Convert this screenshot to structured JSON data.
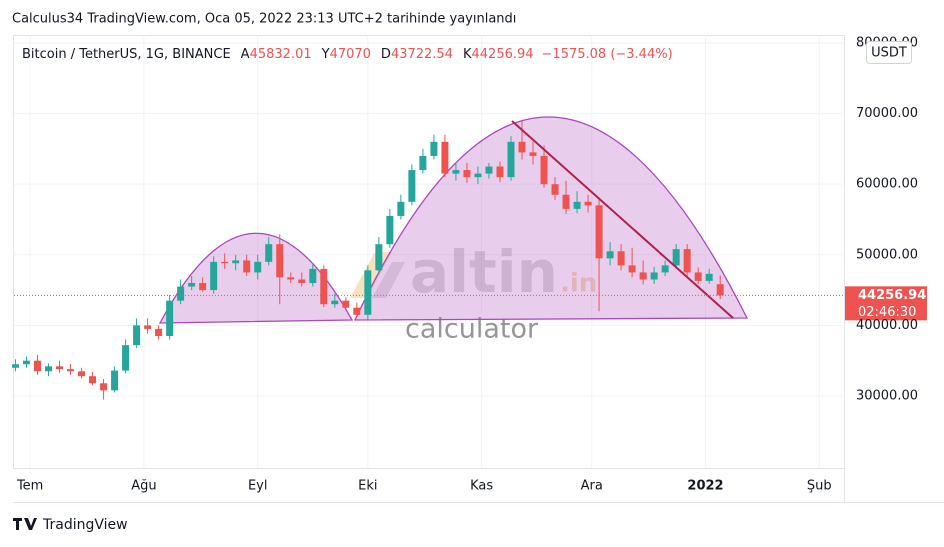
{
  "header": {
    "published": "Calculus34 TradingView.com, Oca 05, 2022 23:13 UTC+2 tarihinde yayınlandı",
    "footer_logo": "TradingView"
  },
  "watermark": {
    "brand": "altin",
    "suffix": ".in",
    "subtitle": "calculator"
  },
  "chart_data": {
    "type": "candlestick",
    "title": "Bitcoin / TetherUS, 1G, BINANCE",
    "ohlc_labels": [
      "A",
      "Y",
      "D",
      "K"
    ],
    "change": "−1575.08 (−3.44%)",
    "currency": "USDT",
    "countdown": "02:46:30",
    "up_color": "#26a69a",
    "down_color": "#ef5350",
    "grid": true,
    "x": [
      -4,
      -1,
      2,
      5,
      8,
      11,
      14,
      17,
      20,
      23,
      26,
      29,
      32,
      35,
      38,
      41,
      44,
      47,
      50,
      53,
      56,
      59,
      62,
      65,
      68,
      71,
      74,
      77,
      80,
      83,
      86,
      89,
      92,
      95,
      98,
      101,
      104,
      107,
      110,
      113,
      116,
      119,
      122,
      125,
      128,
      131,
      134,
      137,
      140,
      143,
      146,
      149,
      152,
      155,
      158,
      161,
      164,
      167,
      170,
      173,
      176,
      179,
      182,
      185,
      188
    ],
    "open": [
      34000,
      34500,
      35000,
      33500,
      34200,
      33800,
      33500,
      32800,
      31800,
      30800,
      33600,
      37200,
      40000,
      39500,
      38500,
      43500,
      45500,
      46000,
      45000,
      49000,
      48800,
      49200,
      47500,
      49000,
      51500,
      46800,
      46500,
      46000,
      48000,
      43000,
      43500,
      42500,
      41500,
      47800,
      51500,
      55500,
      57500,
      62000,
      64000,
      66000,
      61500,
      62000,
      61000,
      61500,
      62500,
      61000,
      66000,
      64500,
      64000,
      60000,
      58500,
      56500,
      57500,
      57000,
      49500,
      50500,
      48500,
      47500,
      46500,
      47500,
      48500,
      50800,
      47500,
      46300,
      45832.01
    ],
    "high": [
      35200,
      35600,
      35800,
      34600,
      35000,
      34500,
      34000,
      33400,
      32400,
      34200,
      38000,
      41000,
      41000,
      40000,
      44300,
      46500,
      47000,
      46800,
      49800,
      50200,
      50000,
      50000,
      50000,
      52500,
      52900,
      47500,
      47500,
      48800,
      48500,
      44500,
      44000,
      43200,
      48500,
      52500,
      56500,
      58500,
      62800,
      65000,
      67000,
      67000,
      63000,
      63000,
      62500,
      63000,
      63200,
      66800,
      69000,
      66000,
      65500,
      61000,
      60500,
      59000,
      58500,
      58000,
      51800,
      51500,
      51000,
      49200,
      48300,
      49200,
      51500,
      51500,
      48200,
      48000,
      47070.0
    ],
    "low": [
      33500,
      34000,
      33000,
      32800,
      33300,
      33000,
      32500,
      31500,
      29500,
      30500,
      33200,
      36800,
      38800,
      38000,
      38000,
      43000,
      45000,
      44800,
      44500,
      48000,
      47800,
      47000,
      46500,
      48500,
      43000,
      46000,
      45500,
      45500,
      42600,
      42500,
      42400,
      41200,
      40800,
      47300,
      51000,
      55000,
      57000,
      61500,
      63500,
      61000,
      60500,
      60200,
      60000,
      60800,
      60300,
      60500,
      63500,
      62800,
      59500,
      57800,
      55800,
      55900,
      56000,
      42000,
      48500,
      47800,
      46800,
      45800,
      45900,
      47000,
      48000,
      47000,
      45800,
      45900,
      43722.54
    ],
    "close": [
      34500,
      35000,
      33500,
      34200,
      33800,
      33500,
      32800,
      31800,
      30800,
      33600,
      37200,
      40000,
      39500,
      38500,
      43500,
      45500,
      46000,
      45000,
      49000,
      48800,
      49200,
      47500,
      49000,
      51500,
      46800,
      46500,
      46000,
      48000,
      43000,
      43500,
      42500,
      41500,
      47800,
      51500,
      55500,
      57500,
      62000,
      64000,
      66000,
      61500,
      62000,
      61000,
      61500,
      62500,
      61000,
      66000,
      64500,
      64000,
      60000,
      58500,
      56500,
      57500,
      57000,
      49500,
      50500,
      48500,
      47500,
      46500,
      47500,
      48500,
      50800,
      47500,
      46300,
      47300,
      44256.94
    ],
    "xlim": [
      -4.4,
      222
    ],
    "xticks": [
      {
        "value": 0,
        "label": "Tem"
      },
      {
        "value": 31,
        "label": "Ağu"
      },
      {
        "value": 62,
        "label": "Eyl"
      },
      {
        "value": 92,
        "label": "Eki"
      },
      {
        "value": 123,
        "label": "Kas"
      },
      {
        "value": 153,
        "label": "Ara"
      },
      {
        "value": 184,
        "label": "2022"
      },
      {
        "value": 215,
        "label": "Şub"
      }
    ],
    "ylim": [
      19800,
      81130
    ],
    "yticks": [
      {
        "value": 30000,
        "label": "30000.00"
      },
      {
        "value": 40000,
        "label": "40000.00"
      },
      {
        "value": 50000,
        "label": "50000.00"
      },
      {
        "value": 60000,
        "label": "60000.00"
      },
      {
        "value": 70000,
        "label": "70000.00"
      },
      {
        "value": 80000,
        "label": "80000.00"
      }
    ]
  }
}
